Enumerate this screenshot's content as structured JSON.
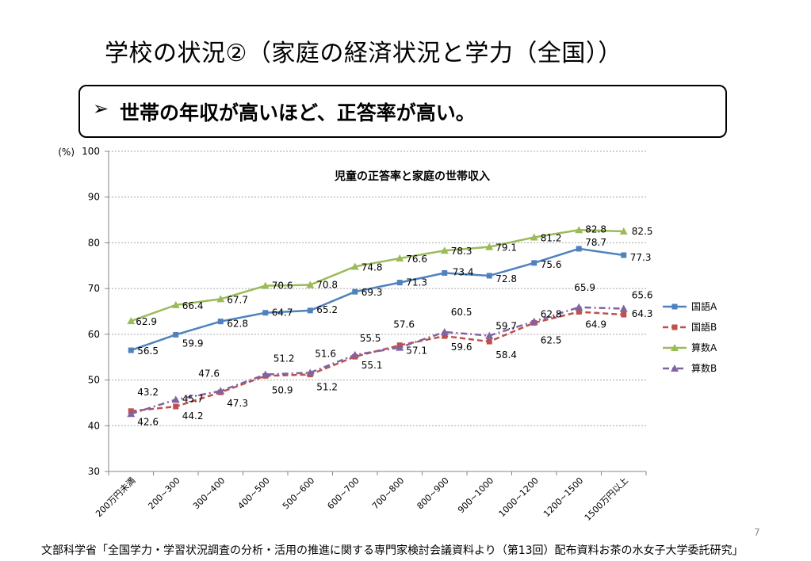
{
  "slide": {
    "title": "学校の状況②（家庭の経済状況と学力（全国））",
    "callout_arrow": "➢",
    "callout_text": "世帯の年収が高いほど、正答率が高い。",
    "page_number": "7",
    "footer": "文部科学省「全国学力・学習状況調査の分析・活用の推進に関する専門家検討会議資料より（第13回）配布資料お茶の水女子大学委託研究」"
  },
  "chart_data": {
    "type": "line",
    "title": "児童の正答率と家庭の世帯収入",
    "ylabel": "(%)",
    "xlabel": "",
    "ylim": [
      30,
      100
    ],
    "yticks": [
      30,
      40,
      50,
      60,
      70,
      80,
      90,
      100
    ],
    "grid": true,
    "legend_position": "right",
    "categories": [
      "200万円未満",
      "200~300",
      "300~400",
      "400~500",
      "500~600",
      "600~700",
      "700~800",
      "800~900",
      "900~1000",
      "1000~1200",
      "1200~1500",
      "1500万円以上"
    ],
    "series": [
      {
        "name": "国語A",
        "color": "#4F81BD",
        "marker": "square",
        "dash": "solid",
        "values": [
          56.5,
          59.9,
          62.8,
          64.7,
          65.2,
          69.3,
          71.3,
          73.4,
          72.8,
          75.6,
          78.7,
          77.3
        ]
      },
      {
        "name": "国語B",
        "color": "#C0504D",
        "marker": "square",
        "dash": "dash",
        "values": [
          43.2,
          44.2,
          47.3,
          50.9,
          51.2,
          55.1,
          57.6,
          59.6,
          58.4,
          62.5,
          64.9,
          64.3
        ]
      },
      {
        "name": "算数A",
        "color": "#9BBB59",
        "marker": "triangle",
        "dash": "solid",
        "values": [
          62.9,
          66.4,
          67.7,
          70.6,
          70.8,
          74.8,
          76.6,
          78.3,
          79.1,
          81.2,
          82.8,
          82.5
        ]
      },
      {
        "name": "算数B",
        "color": "#8064A2",
        "marker": "triangle",
        "dash": "dashdot",
        "values": [
          42.6,
          45.7,
          47.6,
          51.2,
          51.6,
          55.5,
          57.1,
          60.5,
          59.7,
          62.8,
          65.9,
          65.6
        ]
      }
    ]
  }
}
